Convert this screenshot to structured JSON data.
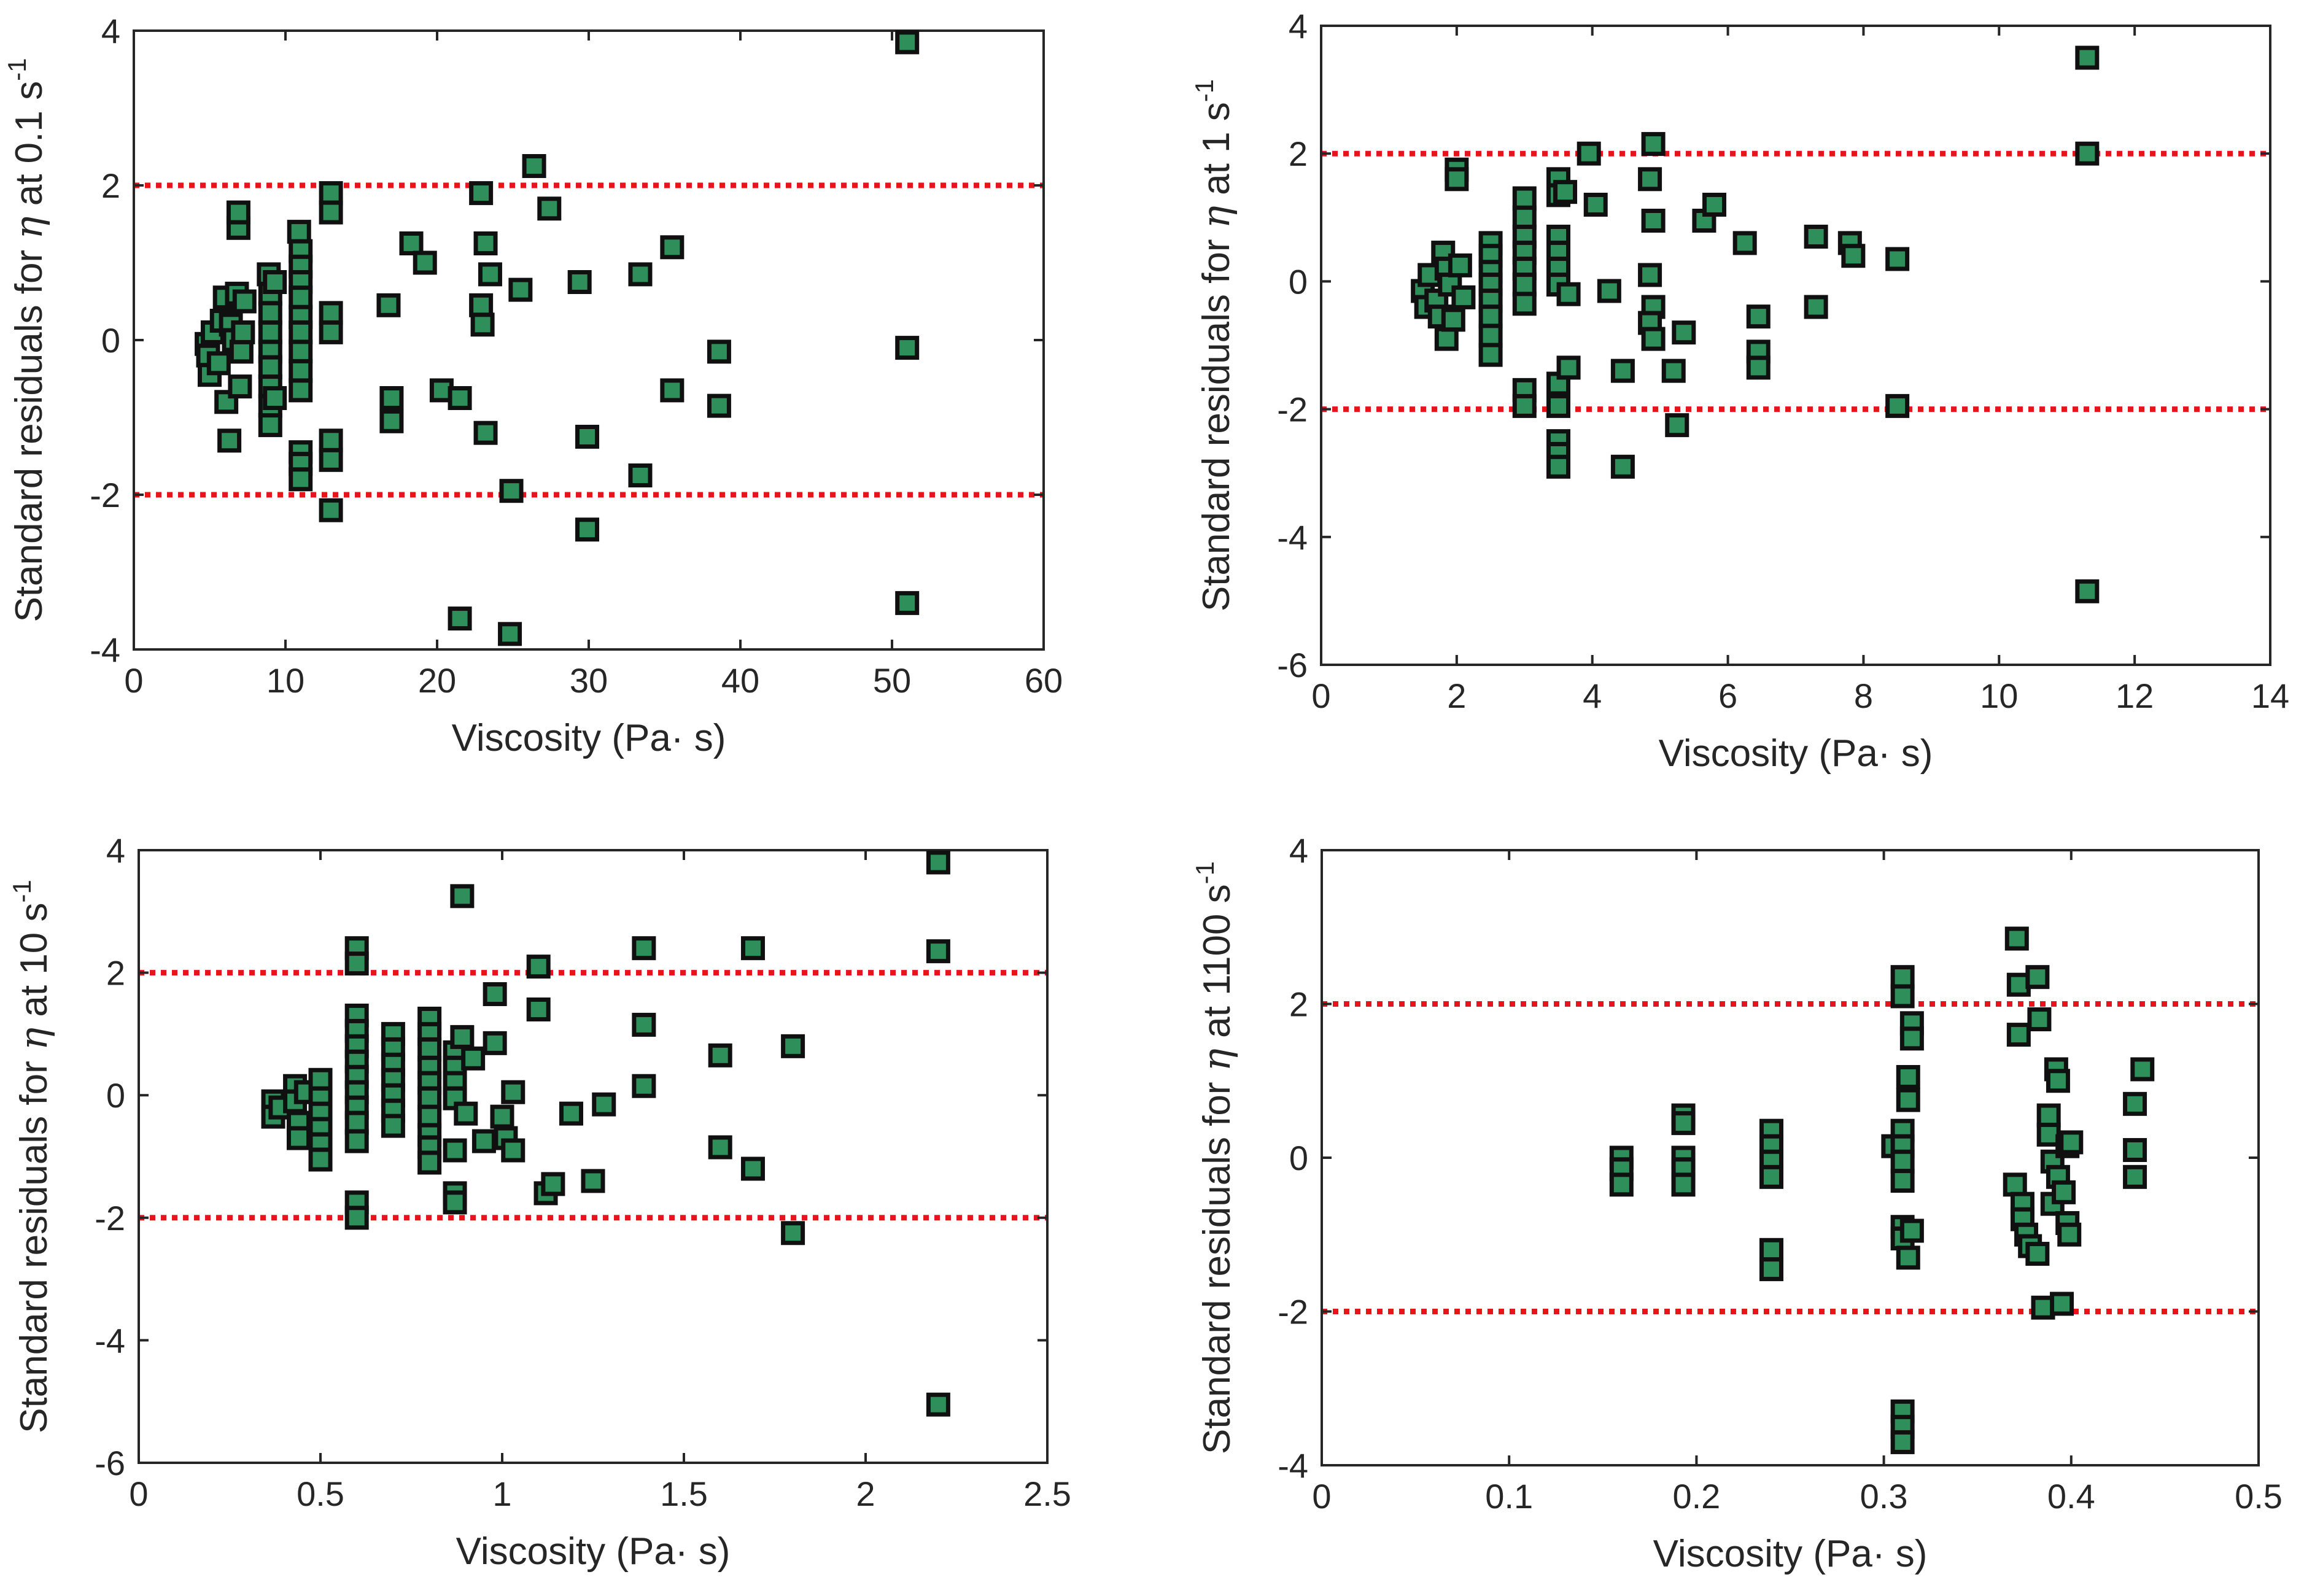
{
  "figure": {
    "name": "standard-residuals-panels"
  },
  "colors": {
    "marker_fill": "#2f8f5b",
    "marker_edge": "#101010",
    "reference_line": "#e8141c",
    "axis": "#262626"
  },
  "chart_data": [
    {
      "type": "scatter",
      "id": "p1",
      "xlabel": "Viscosity (Pa· s)",
      "ylabel": "Standard residuals for η at 0.1 s⁻¹",
      "ylabel_parts": {
        "pre": "Standard residuals for ",
        "eta": "η",
        "post": " at 0.1 s",
        "sup": "-1"
      },
      "xlim": [
        0,
        60
      ],
      "ylim": [
        -4,
        4
      ],
      "xticks": [
        0,
        10,
        20,
        30,
        40,
        50,
        60
      ],
      "yticks": [
        -4,
        -2,
        0,
        2,
        4
      ],
      "xtick_labels": [
        "0",
        "10",
        "20",
        "30",
        "40",
        "50",
        "60"
      ],
      "ytick_labels": [
        "-4",
        "-2",
        "0",
        "2",
        "4"
      ],
      "reference_lines": [
        2,
        -2
      ],
      "points": [
        [
          4.8,
          -0.05
        ],
        [
          4.9,
          -0.2
        ],
        [
          5.0,
          -0.45
        ],
        [
          5.2,
          0.1
        ],
        [
          5.6,
          -0.3
        ],
        [
          5.8,
          0.25
        ],
        [
          6.0,
          0.55
        ],
        [
          6.1,
          -0.8
        ],
        [
          6.3,
          -1.3
        ],
        [
          6.4,
          0.2
        ],
        [
          6.6,
          0.0
        ],
        [
          6.8,
          0.6
        ],
        [
          6.9,
          1.45
        ],
        [
          6.9,
          1.65
        ],
        [
          7.0,
          -0.6
        ],
        [
          7.1,
          -0.15
        ],
        [
          7.2,
          0.1
        ],
        [
          7.3,
          0.5
        ],
        [
          8.9,
          0.85
        ],
        [
          9.0,
          0.6
        ],
        [
          9.0,
          0.35
        ],
        [
          9.0,
          0.1
        ],
        [
          9.0,
          -0.15
        ],
        [
          9.0,
          -0.35
        ],
        [
          9.0,
          -0.6
        ],
        [
          9.0,
          -0.85
        ],
        [
          9.0,
          -1.1
        ],
        [
          9.3,
          0.75
        ],
        [
          9.3,
          -0.75
        ],
        [
          10.9,
          1.4
        ],
        [
          11.0,
          1.15
        ],
        [
          11.0,
          0.95
        ],
        [
          11.0,
          0.75
        ],
        [
          11.0,
          0.55
        ],
        [
          11.0,
          0.3
        ],
        [
          11.0,
          0.1
        ],
        [
          11.0,
          -0.15
        ],
        [
          11.0,
          -0.4
        ],
        [
          11.0,
          -0.65
        ],
        [
          11.0,
          -1.45
        ],
        [
          11.0,
          -1.6
        ],
        [
          11.0,
          -1.8
        ],
        [
          13.0,
          1.9
        ],
        [
          13.0,
          1.65
        ],
        [
          13.0,
          0.35
        ],
        [
          13.0,
          0.1
        ],
        [
          13.0,
          -1.3
        ],
        [
          13.0,
          -1.55
        ],
        [
          13.0,
          -2.2
        ],
        [
          16.8,
          0.45
        ],
        [
          17.0,
          -0.75
        ],
        [
          17.0,
          -1.05
        ],
        [
          18.3,
          1.25
        ],
        [
          19.2,
          1.0
        ],
        [
          20.3,
          -0.65
        ],
        [
          21.5,
          -0.75
        ],
        [
          21.5,
          -3.6
        ],
        [
          22.9,
          1.9
        ],
        [
          22.9,
          0.45
        ],
        [
          23.0,
          0.2
        ],
        [
          23.2,
          1.25
        ],
        [
          23.5,
          0.85
        ],
        [
          23.2,
          -1.2
        ],
        [
          24.8,
          -3.8
        ],
        [
          24.9,
          -1.95
        ],
        [
          25.5,
          0.65
        ],
        [
          26.4,
          2.25
        ],
        [
          27.4,
          1.7
        ],
        [
          29.4,
          0.75
        ],
        [
          29.9,
          -1.25
        ],
        [
          29.9,
          -2.45
        ],
        [
          33.4,
          0.85
        ],
        [
          33.4,
          -1.75
        ],
        [
          35.5,
          1.2
        ],
        [
          35.5,
          -0.65
        ],
        [
          38.6,
          -0.15
        ],
        [
          38.6,
          -0.85
        ],
        [
          51.0,
          3.85
        ],
        [
          51.0,
          -0.1
        ],
        [
          51.0,
          -3.4
        ]
      ]
    },
    {
      "type": "scatter",
      "id": "p2",
      "xlabel": "Viscosity (Pa· s)",
      "ylabel": "Standard residuals for η at 1 s⁻¹",
      "ylabel_parts": {
        "pre": "Standard residuals for ",
        "eta": "η",
        "post": " at 1 s",
        "sup": "-1"
      },
      "xlim": [
        0,
        14
      ],
      "ylim": [
        -6,
        4
      ],
      "xticks": [
        0,
        2,
        4,
        6,
        8,
        10,
        12,
        14
      ],
      "yticks": [
        -6,
        -4,
        -2,
        0,
        2,
        4
      ],
      "xtick_labels": [
        "0",
        "2",
        "4",
        "6",
        "8",
        "10",
        "12",
        "14"
      ],
      "ytick_labels": [
        "-6",
        "-4",
        "-2",
        "0",
        "2",
        "4"
      ],
      "reference_lines": [
        2,
        -2
      ],
      "points": [
        [
          1.5,
          -0.15
        ],
        [
          1.55,
          -0.4
        ],
        [
          1.6,
          0.1
        ],
        [
          1.7,
          -0.3
        ],
        [
          1.75,
          -0.55
        ],
        [
          1.8,
          0.45
        ],
        [
          1.85,
          0.2
        ],
        [
          1.85,
          -0.9
        ],
        [
          1.9,
          -0.05
        ],
        [
          1.95,
          -0.6
        ],
        [
          2.0,
          1.75
        ],
        [
          2.0,
          1.6
        ],
        [
          2.05,
          0.25
        ],
        [
          2.1,
          -0.25
        ],
        [
          2.5,
          0.6
        ],
        [
          2.5,
          0.4
        ],
        [
          2.5,
          0.15
        ],
        [
          2.5,
          -0.05
        ],
        [
          2.5,
          -0.3
        ],
        [
          2.5,
          -0.55
        ],
        [
          2.5,
          -0.85
        ],
        [
          2.5,
          -1.15
        ],
        [
          3.0,
          1.3
        ],
        [
          3.0,
          1.0
        ],
        [
          3.0,
          0.7
        ],
        [
          3.0,
          0.45
        ],
        [
          3.0,
          0.2
        ],
        [
          3.0,
          -0.05
        ],
        [
          3.0,
          -0.35
        ],
        [
          3.0,
          -1.7
        ],
        [
          3.0,
          -1.95
        ],
        [
          3.5,
          1.6
        ],
        [
          3.5,
          1.35
        ],
        [
          3.5,
          0.7
        ],
        [
          3.5,
          0.45
        ],
        [
          3.5,
          0.2
        ],
        [
          3.5,
          -0.05
        ],
        [
          3.5,
          -1.6
        ],
        [
          3.5,
          -1.95
        ],
        [
          3.5,
          -2.5
        ],
        [
          3.5,
          -2.7
        ],
        [
          3.5,
          -2.9
        ],
        [
          3.6,
          1.4
        ],
        [
          3.65,
          -0.2
        ],
        [
          3.65,
          -1.35
        ],
        [
          3.95,
          2.0
        ],
        [
          4.05,
          1.2
        ],
        [
          4.25,
          -0.15
        ],
        [
          4.45,
          -1.4
        ],
        [
          4.45,
          -2.9
        ],
        [
          4.9,
          2.15
        ],
        [
          4.85,
          1.6
        ],
        [
          4.9,
          0.95
        ],
        [
          4.85,
          0.1
        ],
        [
          4.9,
          -0.4
        ],
        [
          4.85,
          -0.65
        ],
        [
          4.9,
          -0.9
        ],
        [
          5.2,
          -1.4
        ],
        [
          5.25,
          -2.25
        ],
        [
          5.35,
          -0.8
        ],
        [
          5.65,
          0.95
        ],
        [
          5.8,
          1.2
        ],
        [
          6.25,
          0.6
        ],
        [
          6.45,
          -0.55
        ],
        [
          6.45,
          -1.1
        ],
        [
          6.45,
          -1.35
        ],
        [
          7.3,
          0.7
        ],
        [
          7.3,
          -0.4
        ],
        [
          7.8,
          0.6
        ],
        [
          7.85,
          0.4
        ],
        [
          8.5,
          0.35
        ],
        [
          8.5,
          -1.95
        ],
        [
          11.3,
          3.5
        ],
        [
          11.3,
          2.0
        ],
        [
          11.3,
          -4.85
        ]
      ]
    },
    {
      "type": "scatter",
      "id": "p3",
      "xlabel": "Viscosity (Pa· s)",
      "ylabel": "Standard residuals for η at 10 s⁻¹",
      "ylabel_parts": {
        "pre": "Standard residuals for ",
        "eta": "η",
        "post": " at 10 s",
        "sup": "-1"
      },
      "xlim": [
        0,
        2.5
      ],
      "ylim": [
        -6,
        4
      ],
      "xticks": [
        0,
        0.5,
        1,
        1.5,
        2,
        2.5
      ],
      "yticks": [
        -6,
        -4,
        -2,
        0,
        2,
        4
      ],
      "xtick_labels": [
        "0",
        "0.5",
        "1",
        "1.5",
        "2",
        "2.5"
      ],
      "ytick_labels": [
        "-6",
        "-4",
        "-2",
        "0",
        "2",
        "4"
      ],
      "reference_lines": [
        2,
        -2
      ],
      "points": [
        [
          0.37,
          -0.1
        ],
        [
          0.37,
          -0.35
        ],
        [
          0.39,
          -0.2
        ],
        [
          0.43,
          0.15
        ],
        [
          0.43,
          -0.1
        ],
        [
          0.44,
          -0.45
        ],
        [
          0.44,
          -0.7
        ],
        [
          0.46,
          0.05
        ],
        [
          0.5,
          0.25
        ],
        [
          0.5,
          -0.05
        ],
        [
          0.5,
          -0.3
        ],
        [
          0.5,
          -0.55
        ],
        [
          0.5,
          -0.8
        ],
        [
          0.5,
          -1.05
        ],
        [
          0.6,
          2.4
        ],
        [
          0.6,
          2.15
        ],
        [
          0.6,
          1.3
        ],
        [
          0.6,
          1.05
        ],
        [
          0.6,
          0.8
        ],
        [
          0.6,
          0.55
        ],
        [
          0.6,
          0.3
        ],
        [
          0.6,
          0.05
        ],
        [
          0.6,
          -0.2
        ],
        [
          0.6,
          -0.45
        ],
        [
          0.6,
          -0.75
        ],
        [
          0.6,
          -1.75
        ],
        [
          0.6,
          -2.0
        ],
        [
          0.7,
          1.0
        ],
        [
          0.7,
          0.75
        ],
        [
          0.7,
          0.5
        ],
        [
          0.7,
          0.25
        ],
        [
          0.7,
          0.0
        ],
        [
          0.7,
          -0.25
        ],
        [
          0.7,
          -0.5
        ],
        [
          0.8,
          1.25
        ],
        [
          0.8,
          1.0
        ],
        [
          0.8,
          0.75
        ],
        [
          0.8,
          0.45
        ],
        [
          0.8,
          0.2
        ],
        [
          0.8,
          -0.05
        ],
        [
          0.8,
          -0.35
        ],
        [
          0.8,
          -0.65
        ],
        [
          0.8,
          -0.85
        ],
        [
          0.8,
          -1.1
        ],
        [
          0.87,
          0.7
        ],
        [
          0.87,
          0.45
        ],
        [
          0.87,
          0.2
        ],
        [
          0.87,
          -0.05
        ],
        [
          0.87,
          -0.9
        ],
        [
          0.87,
          -1.6
        ],
        [
          0.87,
          -1.75
        ],
        [
          0.89,
          3.25
        ],
        [
          0.89,
          0.95
        ],
        [
          0.9,
          -0.3
        ],
        [
          0.92,
          0.6
        ],
        [
          0.95,
          -0.75
        ],
        [
          0.98,
          0.85
        ],
        [
          1.0,
          -0.35
        ],
        [
          0.98,
          1.65
        ],
        [
          1.01,
          -0.7
        ],
        [
          1.03,
          -0.9
        ],
        [
          1.03,
          0.05
        ],
        [
          1.1,
          2.1
        ],
        [
          1.1,
          1.4
        ],
        [
          1.12,
          -1.6
        ],
        [
          1.14,
          -1.45
        ],
        [
          1.19,
          -0.3
        ],
        [
          1.25,
          -1.4
        ],
        [
          1.28,
          -0.15
        ],
        [
          1.39,
          2.4
        ],
        [
          1.39,
          1.15
        ],
        [
          1.39,
          0.15
        ],
        [
          1.6,
          0.65
        ],
        [
          1.6,
          -0.85
        ],
        [
          1.69,
          2.4
        ],
        [
          1.69,
          -1.2
        ],
        [
          1.8,
          0.8
        ],
        [
          1.8,
          -2.25
        ],
        [
          2.2,
          3.8
        ],
        [
          2.2,
          2.35
        ],
        [
          2.2,
          -5.05
        ]
      ]
    },
    {
      "type": "scatter",
      "id": "p4",
      "xlabel": "Viscosity (Pa· s)",
      "ylabel": "Standard residuals for η at 1100 s⁻¹",
      "ylabel_parts": {
        "pre": "Standard residuals for ",
        "eta": "η",
        "post": " at 1100 s",
        "sup": "-1"
      },
      "xlim": [
        0,
        0.5
      ],
      "ylim": [
        -4,
        4
      ],
      "xticks": [
        0,
        0.1,
        0.2,
        0.3,
        0.4,
        0.5
      ],
      "yticks": [
        -4,
        -2,
        0,
        2,
        4
      ],
      "xtick_labels": [
        "0",
        "0.1",
        "0.2",
        "0.3",
        "0.4",
        "0.5"
      ],
      "ytick_labels": [
        "-4",
        "-2",
        "0",
        "2",
        "4"
      ],
      "reference_lines": [
        2,
        -2
      ],
      "points": [
        [
          0.16,
          0.0
        ],
        [
          0.16,
          -0.15
        ],
        [
          0.16,
          -0.35
        ],
        [
          0.193,
          0.55
        ],
        [
          0.193,
          0.45
        ],
        [
          0.193,
          0.0
        ],
        [
          0.193,
          -0.15
        ],
        [
          0.193,
          -0.35
        ],
        [
          0.24,
          0.35
        ],
        [
          0.24,
          0.15
        ],
        [
          0.24,
          -0.05
        ],
        [
          0.24,
          -0.25
        ],
        [
          0.24,
          -1.2
        ],
        [
          0.24,
          -1.45
        ],
        [
          0.305,
          0.15
        ],
        [
          0.31,
          2.35
        ],
        [
          0.31,
          2.1
        ],
        [
          0.31,
          0.35
        ],
        [
          0.31,
          0.15
        ],
        [
          0.31,
          -0.05
        ],
        [
          0.31,
          -0.3
        ],
        [
          0.31,
          -0.9
        ],
        [
          0.31,
          -1.05
        ],
        [
          0.31,
          -3.3
        ],
        [
          0.31,
          -3.5
        ],
        [
          0.31,
          -3.7
        ],
        [
          0.313,
          1.05
        ],
        [
          0.313,
          0.75
        ],
        [
          0.313,
          -1.3
        ],
        [
          0.315,
          1.75
        ],
        [
          0.315,
          1.55
        ],
        [
          0.315,
          -0.95
        ],
        [
          0.371,
          2.85
        ],
        [
          0.372,
          2.25
        ],
        [
          0.372,
          1.6
        ],
        [
          0.37,
          -0.35
        ],
        [
          0.374,
          -0.6
        ],
        [
          0.374,
          -0.8
        ],
        [
          0.376,
          -1.0
        ],
        [
          0.378,
          -1.15
        ],
        [
          0.382,
          -1.25
        ],
        [
          0.382,
          2.35
        ],
        [
          0.383,
          1.8
        ],
        [
          0.385,
          -1.95
        ],
        [
          0.388,
          0.55
        ],
        [
          0.388,
          0.3
        ],
        [
          0.39,
          -0.05
        ],
        [
          0.39,
          -0.6
        ],
        [
          0.392,
          1.15
        ],
        [
          0.393,
          1.0
        ],
        [
          0.393,
          -0.25
        ],
        [
          0.395,
          -1.9
        ],
        [
          0.396,
          -0.45
        ],
        [
          0.398,
          0.15
        ],
        [
          0.398,
          -0.85
        ],
        [
          0.399,
          -1.0
        ],
        [
          0.4,
          0.2
        ],
        [
          0.434,
          0.7
        ],
        [
          0.434,
          0.1
        ],
        [
          0.434,
          -0.25
        ],
        [
          0.438,
          1.15
        ]
      ]
    }
  ]
}
